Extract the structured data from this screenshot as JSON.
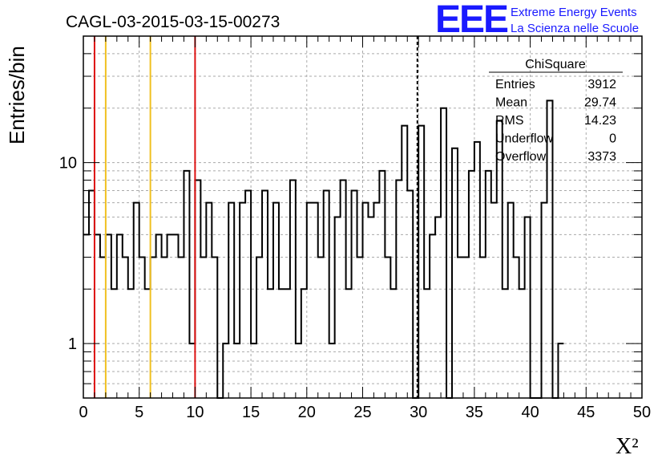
{
  "header": {
    "title": "CAGL-03-2015-03-15-00273",
    "logo": "EEE",
    "logo_line1": "Extreme Energy Events",
    "logo_line2": "La Scienza nelle Scuole"
  },
  "stats": {
    "title": "ChiSquare",
    "rows": [
      {
        "label": "Entries",
        "value": "3912"
      },
      {
        "label": "Mean",
        "value": "29.74"
      },
      {
        "label": "RMS",
        "value": "14.23"
      },
      {
        "label": "Underflow",
        "value": "0"
      },
      {
        "label": "Overflow",
        "value": "3373"
      }
    ]
  },
  "chart_data": {
    "type": "histogram",
    "xlabel": "X²",
    "ylabel": "Entries/bin",
    "xlim": [
      0,
      50
    ],
    "ylim": [
      0.5,
      50
    ],
    "yscale": "log",
    "grid": true,
    "bin_width": 0.5,
    "x_ticks": [
      0,
      5,
      10,
      15,
      20,
      25,
      30,
      35,
      40,
      45,
      50
    ],
    "y_ticks": [
      1,
      10
    ],
    "counts": [
      4,
      7,
      4,
      3,
      4,
      2,
      4,
      3,
      2,
      6,
      3,
      2,
      3,
      4,
      3,
      4,
      4,
      3,
      9,
      1,
      8,
      3,
      6,
      3,
      0,
      1,
      6,
      1,
      6,
      7,
      1,
      3,
      7,
      2,
      6,
      2,
      2,
      8,
      1,
      2,
      6,
      6,
      3,
      7,
      1,
      5,
      8,
      2,
      7,
      3,
      6,
      5,
      6,
      9,
      3,
      2,
      8,
      16,
      7,
      0,
      16,
      2,
      4,
      5,
      20,
      0,
      12,
      3,
      3,
      9,
      13,
      3,
      9,
      6,
      17,
      2,
      6,
      3,
      2,
      5,
      0,
      0,
      6,
      22,
      0,
      1
    ],
    "vertical_lines": [
      {
        "x": 1,
        "color": "#dd1111",
        "style": "solid"
      },
      {
        "x": 2,
        "color": "#f0c020",
        "style": "solid"
      },
      {
        "x": 6,
        "color": "#f0c020",
        "style": "solid"
      },
      {
        "x": 10,
        "color": "#dd1111",
        "style": "solid"
      },
      {
        "x": 29.9,
        "color": "#000000",
        "style": "dashed"
      }
    ]
  }
}
